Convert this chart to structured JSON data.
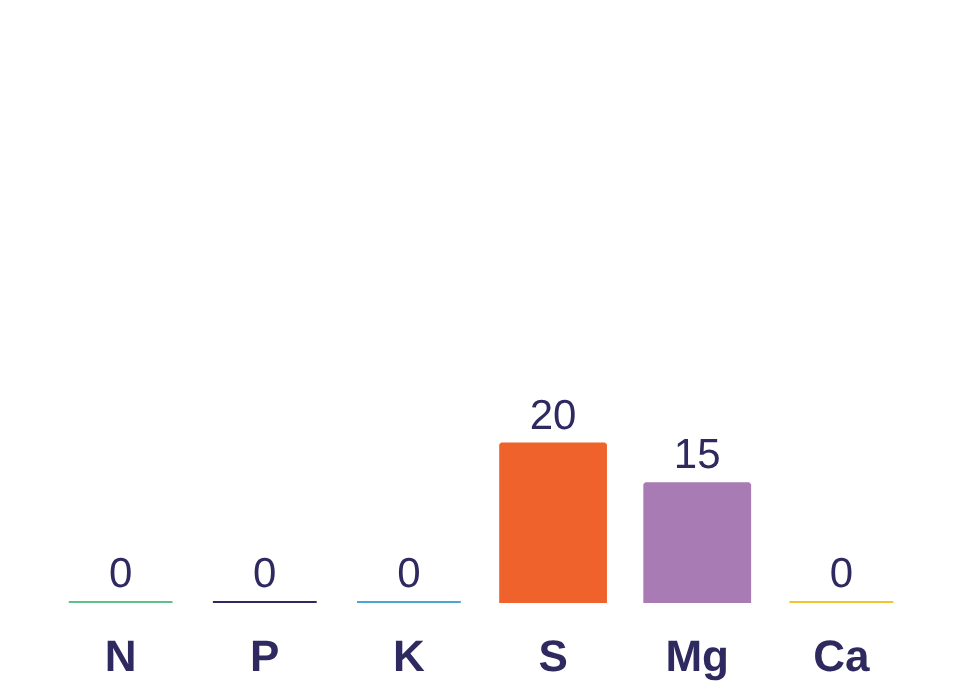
{
  "chart_data": {
    "type": "bar",
    "categories": [
      "N",
      "P",
      "K",
      "S",
      "Mg",
      "Ca"
    ],
    "values": [
      0,
      0,
      0,
      20,
      15,
      0
    ],
    "colors": [
      "#5fc08c",
      "#2e2a60",
      "#4aa6d9",
      "#ef622b",
      "#a97bb5",
      "#f4c42f"
    ],
    "tick_labels": "x",
    "data_labels": true
  }
}
